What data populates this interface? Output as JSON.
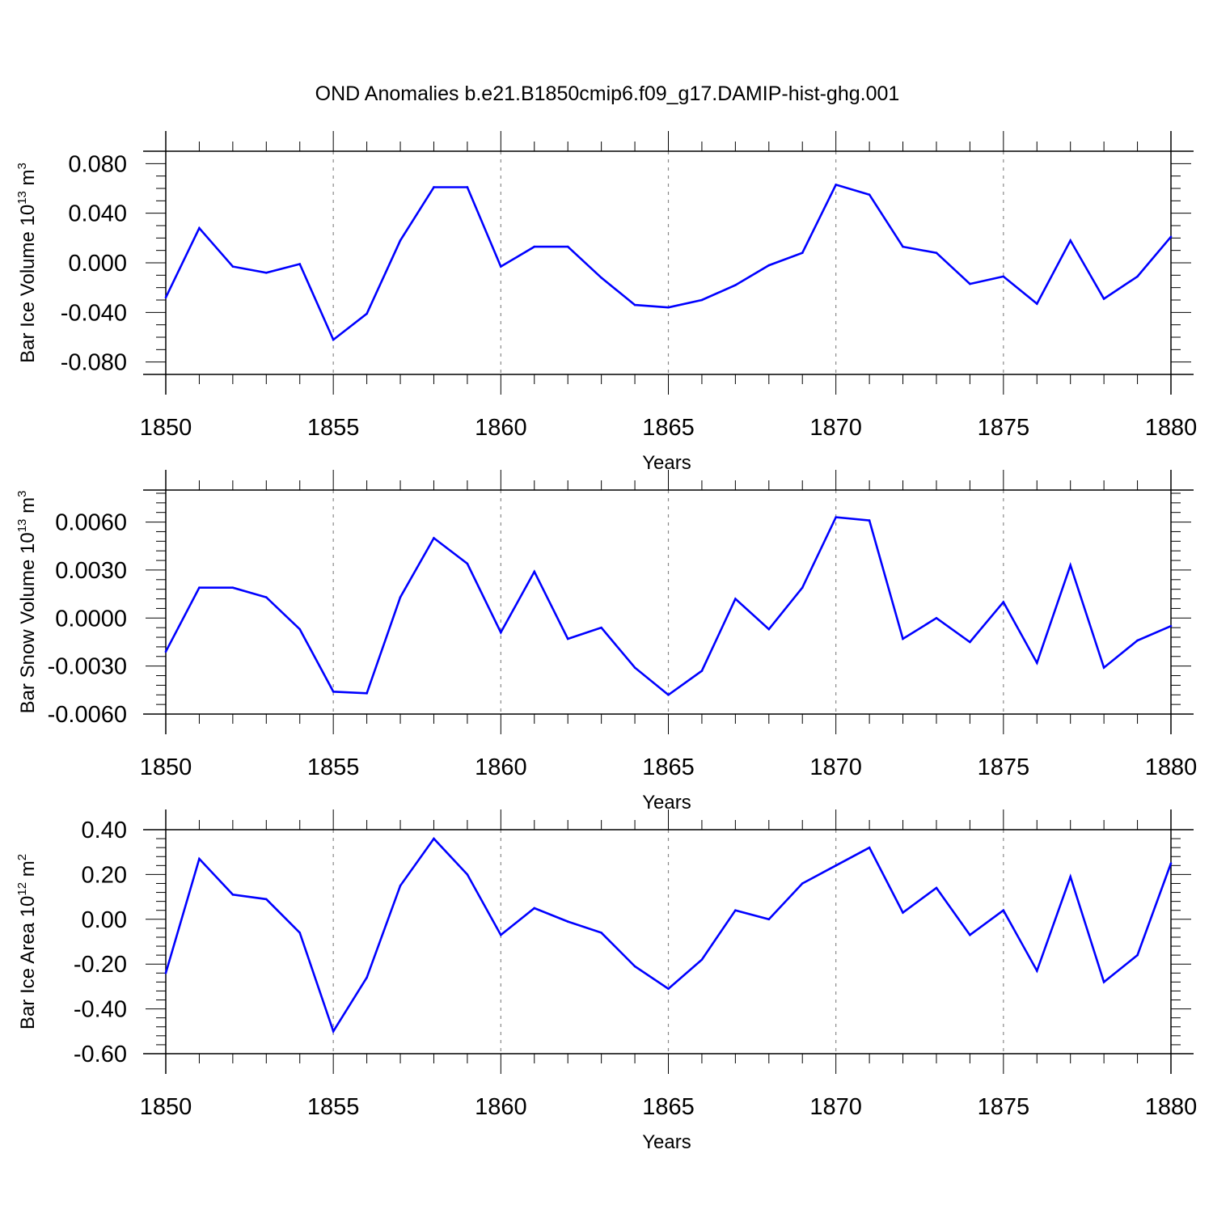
{
  "title": "OND Anomalies b.e21.B1850cmip6.f09_g17.DAMIP-hist-ghg.001",
  "colors": {
    "series": "#0000ff",
    "axis": "#000000",
    "grid": "#888888"
  },
  "chart_data": [
    {
      "type": "line",
      "title": "OND Anomalies b.e21.B1850cmip6.f09_g17.DAMIP-hist-ghg.001",
      "xlabel": "Years",
      "ylabel": {
        "text": "Bar Ice Volume 10",
        "exponent": "13",
        "unit": "m",
        "unit_exponent": "3"
      },
      "xlim": [
        1850,
        1880
      ],
      "ylim": [
        -0.09,
        0.09
      ],
      "x_ticks": [
        1850,
        1855,
        1860,
        1865,
        1870,
        1875,
        1880
      ],
      "x_tick_labels": [
        "1850",
        "1855",
        "1860",
        "1865",
        "1870",
        "1875",
        "1880"
      ],
      "y_ticks": [
        -0.08,
        -0.04,
        0,
        0.04,
        0.08
      ],
      "y_tick_labels": [
        "-0.080",
        "-0.040",
        "0.000",
        "0.040",
        "0.080"
      ],
      "y_minor_step": 0.01,
      "grid": "dashed vertical at major x ticks",
      "x": [
        1850,
        1851,
        1852,
        1853,
        1854,
        1855,
        1856,
        1857,
        1858,
        1859,
        1860,
        1861,
        1862,
        1863,
        1864,
        1865,
        1866,
        1867,
        1868,
        1869,
        1870,
        1871,
        1872,
        1873,
        1874,
        1875,
        1876,
        1877,
        1878,
        1879,
        1880
      ],
      "values": [
        -0.028,
        0.028,
        -0.003,
        -0.008,
        -0.001,
        -0.062,
        -0.041,
        0.018,
        0.061,
        0.061,
        -0.003,
        0.013,
        0.013,
        -0.012,
        -0.034,
        -0.036,
        -0.03,
        -0.018,
        -0.002,
        0.008,
        0.063,
        0.055,
        0.013,
        0.008,
        -0.017,
        -0.011,
        -0.033,
        0.018,
        -0.029,
        -0.011,
        0.021
      ]
    },
    {
      "type": "line",
      "title": "",
      "xlabel": "Years",
      "ylabel": {
        "text": "Bar Snow Volume 10",
        "exponent": "13",
        "unit": "m",
        "unit_exponent": "3"
      },
      "xlim": [
        1850,
        1880
      ],
      "ylim": [
        -0.006,
        0.008
      ],
      "x_ticks": [
        1850,
        1855,
        1860,
        1865,
        1870,
        1875,
        1880
      ],
      "x_tick_labels": [
        "1850",
        "1855",
        "1860",
        "1865",
        "1870",
        "1875",
        "1880"
      ],
      "y_ticks": [
        -0.006,
        -0.003,
        0,
        0.003,
        0.006
      ],
      "y_tick_labels": [
        "-0.0060",
        "-0.0030",
        "0.0000",
        "0.0030",
        "0.0060"
      ],
      "y_minor_step": 0.0006,
      "grid": "dashed vertical at major x ticks",
      "x": [
        1850,
        1851,
        1852,
        1853,
        1854,
        1855,
        1856,
        1857,
        1858,
        1859,
        1860,
        1861,
        1862,
        1863,
        1864,
        1865,
        1866,
        1867,
        1868,
        1869,
        1870,
        1871,
        1872,
        1873,
        1874,
        1875,
        1876,
        1877,
        1878,
        1879,
        1880
      ],
      "values": [
        -0.0021,
        0.0019,
        0.0019,
        0.0013,
        -0.0007,
        -0.0046,
        -0.0047,
        0.0013,
        0.005,
        0.0034,
        -0.0009,
        0.0029,
        -0.0013,
        -0.0006,
        -0.0031,
        -0.0048,
        -0.0033,
        0.0012,
        -0.0007,
        0.0019,
        0.0063,
        0.0061,
        -0.0013,
        0.0,
        -0.0015,
        0.001,
        -0.0028,
        0.0033,
        -0.0031,
        -0.0014,
        -0.0005
      ]
    },
    {
      "type": "line",
      "title": "",
      "xlabel": "Years",
      "ylabel": {
        "text": "Bar Ice Area 10",
        "exponent": "12",
        "unit": "m",
        "unit_exponent": "2"
      },
      "xlim": [
        1850,
        1880
      ],
      "ylim": [
        -0.6,
        0.4
      ],
      "x_ticks": [
        1850,
        1855,
        1860,
        1865,
        1870,
        1875,
        1880
      ],
      "x_tick_labels": [
        "1850",
        "1855",
        "1860",
        "1865",
        "1870",
        "1875",
        "1880"
      ],
      "y_ticks": [
        -0.6,
        -0.4,
        -0.2,
        0,
        0.2,
        0.4
      ],
      "y_tick_labels": [
        "-0.60",
        "-0.40",
        "-0.20",
        "0.00",
        "0.20",
        "0.40"
      ],
      "y_minor_step": 0.04,
      "grid": "dashed vertical at major x ticks",
      "x": [
        1850,
        1851,
        1852,
        1853,
        1854,
        1855,
        1856,
        1857,
        1858,
        1859,
        1860,
        1861,
        1862,
        1863,
        1864,
        1865,
        1866,
        1867,
        1868,
        1869,
        1870,
        1871,
        1872,
        1873,
        1874,
        1875,
        1876,
        1877,
        1878,
        1879,
        1880
      ],
      "values": [
        -0.24,
        0.27,
        0.11,
        0.09,
        -0.06,
        -0.5,
        -0.26,
        0.15,
        0.36,
        0.2,
        -0.07,
        0.05,
        -0.01,
        -0.06,
        -0.21,
        -0.31,
        -0.18,
        0.04,
        0.0,
        0.16,
        0.24,
        0.32,
        0.03,
        0.14,
        -0.07,
        0.04,
        -0.23,
        0.19,
        -0.28,
        -0.16,
        0.25
      ]
    }
  ]
}
